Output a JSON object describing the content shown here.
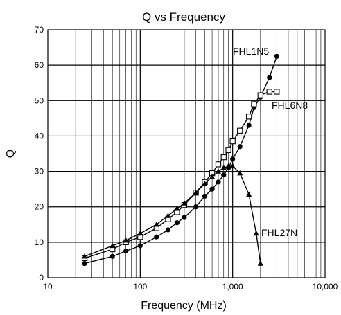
{
  "chart_data": {
    "type": "line",
    "title": "Q vs Frequency",
    "xlabel": "Frequency (MHz)",
    "ylabel": "Q",
    "xscale": "log",
    "xlim": [
      10,
      10000
    ],
    "ylim": [
      0,
      70
    ],
    "x_tick_labels": [
      "10",
      "100",
      "1,000",
      "10,000"
    ],
    "y_tick_labels": [
      "0",
      "10",
      "20",
      "30",
      "40",
      "50",
      "60",
      "70"
    ],
    "grid": true,
    "legend": "none (series labeled directly on the plot)",
    "series": [
      {
        "name": "FHL1N5",
        "marker": "filled-circle",
        "x": [
          25,
          50,
          70,
          100,
          150,
          200,
          250,
          300,
          400,
          500,
          600,
          700,
          800,
          900,
          1000,
          1200,
          1500,
          1700,
          2000,
          2500,
          3000
        ],
        "y": [
          4,
          6,
          7.5,
          9,
          11.5,
          13.5,
          15.5,
          17,
          20,
          23,
          25,
          27,
          29,
          31,
          33.5,
          37,
          43,
          48,
          51,
          56.5,
          62.5
        ]
      },
      {
        "name": "FHL6N8",
        "marker": "open-square",
        "x": [
          25,
          50,
          70,
          100,
          150,
          200,
          250,
          300,
          400,
          500,
          600,
          700,
          800,
          900,
          1000,
          1200,
          1500,
          1700,
          2000,
          2500,
          3000
        ],
        "y": [
          5.5,
          8,
          10,
          11.5,
          14,
          16.5,
          18.5,
          20.5,
          24,
          27,
          29.5,
          32,
          34,
          36,
          38.5,
          41.5,
          45.5,
          49,
          51.5,
          52.5,
          52.5
        ]
      },
      {
        "name": "FHL27N",
        "marker": "filled-triangle",
        "x": [
          25,
          50,
          70,
          100,
          150,
          200,
          250,
          300,
          400,
          500,
          600,
          700,
          800,
          900,
          1000,
          1200,
          1500,
          1800,
          2000
        ],
        "y": [
          6,
          9,
          10.5,
          12.5,
          15,
          17.5,
          19.5,
          21,
          24,
          26.5,
          28.5,
          30,
          31,
          31.5,
          31.5,
          29.5,
          23.5,
          12.5,
          4
        ]
      }
    ]
  },
  "colors": {
    "line": "#000000",
    "grid": "#000000",
    "background": "#ffffff"
  }
}
